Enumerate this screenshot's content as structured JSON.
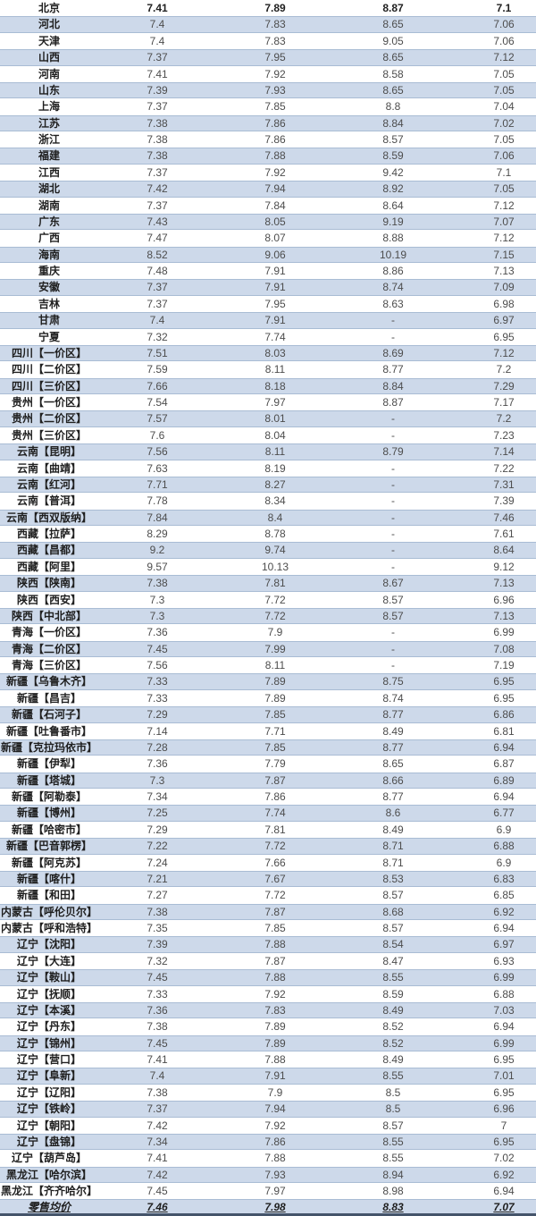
{
  "table": {
    "rows": [
      {
        "name": "北京",
        "values": [
          "7.41",
          "7.89",
          "8.87",
          "7.1"
        ]
      },
      {
        "name": "河北",
        "values": [
          "7.4",
          "7.83",
          "8.65",
          "7.06"
        ]
      },
      {
        "name": "天津",
        "values": [
          "7.4",
          "7.83",
          "9.05",
          "7.06"
        ]
      },
      {
        "name": "山西",
        "values": [
          "7.37",
          "7.95",
          "8.65",
          "7.12"
        ]
      },
      {
        "name": "河南",
        "values": [
          "7.41",
          "7.92",
          "8.58",
          "7.05"
        ]
      },
      {
        "name": "山东",
        "values": [
          "7.39",
          "7.93",
          "8.65",
          "7.05"
        ]
      },
      {
        "name": "上海",
        "values": [
          "7.37",
          "7.85",
          "8.8",
          "7.04"
        ]
      },
      {
        "name": "江苏",
        "values": [
          "7.38",
          "7.86",
          "8.84",
          "7.02"
        ]
      },
      {
        "name": "浙江",
        "values": [
          "7.38",
          "7.86",
          "8.57",
          "7.05"
        ]
      },
      {
        "name": "福建",
        "values": [
          "7.38",
          "7.88",
          "8.59",
          "7.06"
        ]
      },
      {
        "name": "江西",
        "values": [
          "7.37",
          "7.92",
          "9.42",
          "7.1"
        ]
      },
      {
        "name": "湖北",
        "values": [
          "7.42",
          "7.94",
          "8.92",
          "7.05"
        ]
      },
      {
        "name": "湖南",
        "values": [
          "7.37",
          "7.84",
          "8.64",
          "7.12"
        ]
      },
      {
        "name": "广东",
        "values": [
          "7.43",
          "8.05",
          "9.19",
          "7.07"
        ]
      },
      {
        "name": "广西",
        "values": [
          "7.47",
          "8.07",
          "8.88",
          "7.12"
        ]
      },
      {
        "name": "海南",
        "values": [
          "8.52",
          "9.06",
          "10.19",
          "7.15"
        ]
      },
      {
        "name": "重庆",
        "values": [
          "7.48",
          "7.91",
          "8.86",
          "7.13"
        ]
      },
      {
        "name": "安徽",
        "values": [
          "7.37",
          "7.91",
          "8.74",
          "7.09"
        ]
      },
      {
        "name": "吉林",
        "values": [
          "7.37",
          "7.95",
          "8.63",
          "6.98"
        ]
      },
      {
        "name": "甘肃",
        "values": [
          "7.4",
          "7.91",
          "-",
          "6.97"
        ]
      },
      {
        "name": "宁夏",
        "values": [
          "7.32",
          "7.74",
          "-",
          "6.95"
        ]
      },
      {
        "name": "四川【一价区】",
        "values": [
          "7.51",
          "8.03",
          "8.69",
          "7.12"
        ]
      },
      {
        "name": "四川【二价区】",
        "values": [
          "7.59",
          "8.11",
          "8.77",
          "7.2"
        ]
      },
      {
        "name": "四川【三价区】",
        "values": [
          "7.66",
          "8.18",
          "8.84",
          "7.29"
        ]
      },
      {
        "name": "贵州【一价区】",
        "values": [
          "7.54",
          "7.97",
          "8.87",
          "7.17"
        ]
      },
      {
        "name": "贵州【二价区】",
        "values": [
          "7.57",
          "8.01",
          "-",
          "7.2"
        ]
      },
      {
        "name": "贵州【三价区】",
        "values": [
          "7.6",
          "8.04",
          "-",
          "7.23"
        ]
      },
      {
        "name": "云南【昆明】",
        "values": [
          "7.56",
          "8.11",
          "8.79",
          "7.14"
        ]
      },
      {
        "name": "云南【曲靖】",
        "values": [
          "7.63",
          "8.19",
          "-",
          "7.22"
        ]
      },
      {
        "name": "云南【红河】",
        "values": [
          "7.71",
          "8.27",
          "-",
          "7.31"
        ]
      },
      {
        "name": "云南【普洱】",
        "values": [
          "7.78",
          "8.34",
          "-",
          "7.39"
        ]
      },
      {
        "name": "云南【西双版纳】",
        "values": [
          "7.84",
          "8.4",
          "-",
          "7.46"
        ]
      },
      {
        "name": "西藏【拉萨】",
        "values": [
          "8.29",
          "8.78",
          "-",
          "7.61"
        ]
      },
      {
        "name": "西藏【昌都】",
        "values": [
          "9.2",
          "9.74",
          "-",
          "8.64"
        ]
      },
      {
        "name": "西藏【阿里】",
        "values": [
          "9.57",
          "10.13",
          "-",
          "9.12"
        ]
      },
      {
        "name": "陕西【陕南】",
        "values": [
          "7.38",
          "7.81",
          "8.67",
          "7.13"
        ]
      },
      {
        "name": "陕西【西安】",
        "values": [
          "7.3",
          "7.72",
          "8.57",
          "6.96"
        ]
      },
      {
        "name": "陕西【中北部】",
        "values": [
          "7.3",
          "7.72",
          "8.57",
          "7.13"
        ]
      },
      {
        "name": "青海【一价区】",
        "values": [
          "7.36",
          "7.9",
          "-",
          "6.99"
        ]
      },
      {
        "name": "青海【二价区】",
        "values": [
          "7.45",
          "7.99",
          "-",
          "7.08"
        ]
      },
      {
        "name": "青海【三价区】",
        "values": [
          "7.56",
          "8.11",
          "-",
          "7.19"
        ]
      },
      {
        "name": "新疆【乌鲁木齐】",
        "values": [
          "7.33",
          "7.89",
          "8.75",
          "6.95"
        ]
      },
      {
        "name": "新疆【昌吉】",
        "values": [
          "7.33",
          "7.89",
          "8.74",
          "6.95"
        ]
      },
      {
        "name": "新疆【石河子】",
        "values": [
          "7.29",
          "7.85",
          "8.77",
          "6.86"
        ]
      },
      {
        "name": "新疆【吐鲁番市】",
        "values": [
          "7.14",
          "7.71",
          "8.49",
          "6.81"
        ]
      },
      {
        "name": "新疆【克拉玛依市】",
        "values": [
          "7.28",
          "7.85",
          "8.77",
          "6.94"
        ]
      },
      {
        "name": "新疆【伊犁】",
        "values": [
          "7.36",
          "7.79",
          "8.65",
          "6.87"
        ]
      },
      {
        "name": "新疆【塔城】",
        "values": [
          "7.3",
          "7.87",
          "8.66",
          "6.89"
        ]
      },
      {
        "name": "新疆【阿勒泰】",
        "values": [
          "7.34",
          "7.86",
          "8.77",
          "6.94"
        ]
      },
      {
        "name": "新疆【博州】",
        "values": [
          "7.25",
          "7.74",
          "8.6",
          "6.77"
        ]
      },
      {
        "name": "新疆【哈密市】",
        "values": [
          "7.29",
          "7.81",
          "8.49",
          "6.9"
        ]
      },
      {
        "name": "新疆【巴音郭楞】",
        "values": [
          "7.22",
          "7.72",
          "8.71",
          "6.88"
        ]
      },
      {
        "name": "新疆【阿克苏】",
        "values": [
          "7.24",
          "7.66",
          "8.71",
          "6.9"
        ]
      },
      {
        "name": "新疆【喀什】",
        "values": [
          "7.21",
          "7.67",
          "8.53",
          "6.83"
        ]
      },
      {
        "name": "新疆【和田】",
        "values": [
          "7.27",
          "7.72",
          "8.57",
          "6.85"
        ]
      },
      {
        "name": "内蒙古【呼伦贝尔】",
        "values": [
          "7.38",
          "7.87",
          "8.68",
          "6.92"
        ]
      },
      {
        "name": "内蒙古【呼和浩特】",
        "values": [
          "7.35",
          "7.85",
          "8.57",
          "6.94"
        ]
      },
      {
        "name": "辽宁【沈阳】",
        "values": [
          "7.39",
          "7.88",
          "8.54",
          "6.97"
        ]
      },
      {
        "name": "辽宁【大连】",
        "values": [
          "7.32",
          "7.87",
          "8.47",
          "6.93"
        ]
      },
      {
        "name": "辽宁【鞍山】",
        "values": [
          "7.45",
          "7.88",
          "8.55",
          "6.99"
        ]
      },
      {
        "name": "辽宁【抚顺】",
        "values": [
          "7.33",
          "7.92",
          "8.59",
          "6.88"
        ]
      },
      {
        "name": "辽宁【本溪】",
        "values": [
          "7.36",
          "7.83",
          "8.49",
          "7.03"
        ]
      },
      {
        "name": "辽宁【丹东】",
        "values": [
          "7.38",
          "7.89",
          "8.52",
          "6.94"
        ]
      },
      {
        "name": "辽宁【锦州】",
        "values": [
          "7.45",
          "7.89",
          "8.52",
          "6.99"
        ]
      },
      {
        "name": "辽宁【营口】",
        "values": [
          "7.41",
          "7.88",
          "8.49",
          "6.95"
        ]
      },
      {
        "name": "辽宁【阜新】",
        "values": [
          "7.4",
          "7.91",
          "8.55",
          "7.01"
        ]
      },
      {
        "name": "辽宁【辽阳】",
        "values": [
          "7.38",
          "7.9",
          "8.5",
          "6.95"
        ]
      },
      {
        "name": "辽宁【铁岭】",
        "values": [
          "7.37",
          "7.94",
          "8.5",
          "6.96"
        ]
      },
      {
        "name": "辽宁【朝阳】",
        "values": [
          "7.42",
          "7.92",
          "8.57",
          "7"
        ]
      },
      {
        "name": "辽宁【盘锦】",
        "values": [
          "7.34",
          "7.86",
          "8.55",
          "6.95"
        ]
      },
      {
        "name": "辽宁【葫芦岛】",
        "values": [
          "7.41",
          "7.88",
          "8.55",
          "7.02"
        ]
      },
      {
        "name": "黑龙江【哈尔滨】",
        "values": [
          "7.42",
          "7.93",
          "8.94",
          "6.92"
        ]
      },
      {
        "name": "黑龙江【齐齐哈尔】",
        "values": [
          "7.45",
          "7.97",
          "8.98",
          "6.94"
        ]
      }
    ],
    "total_row": {
      "name": "零售均价",
      "values": [
        "7.46",
        "7.98",
        "8.83",
        "7.07"
      ]
    },
    "empty_value": "-"
  },
  "colors": {
    "row_alt_bg": "#cdd9ea",
    "row_line": "#a9bcd4",
    "bottom_border": "#44546a",
    "name_text": "#1f1f1f",
    "value_text": "#4d4d4d"
  }
}
